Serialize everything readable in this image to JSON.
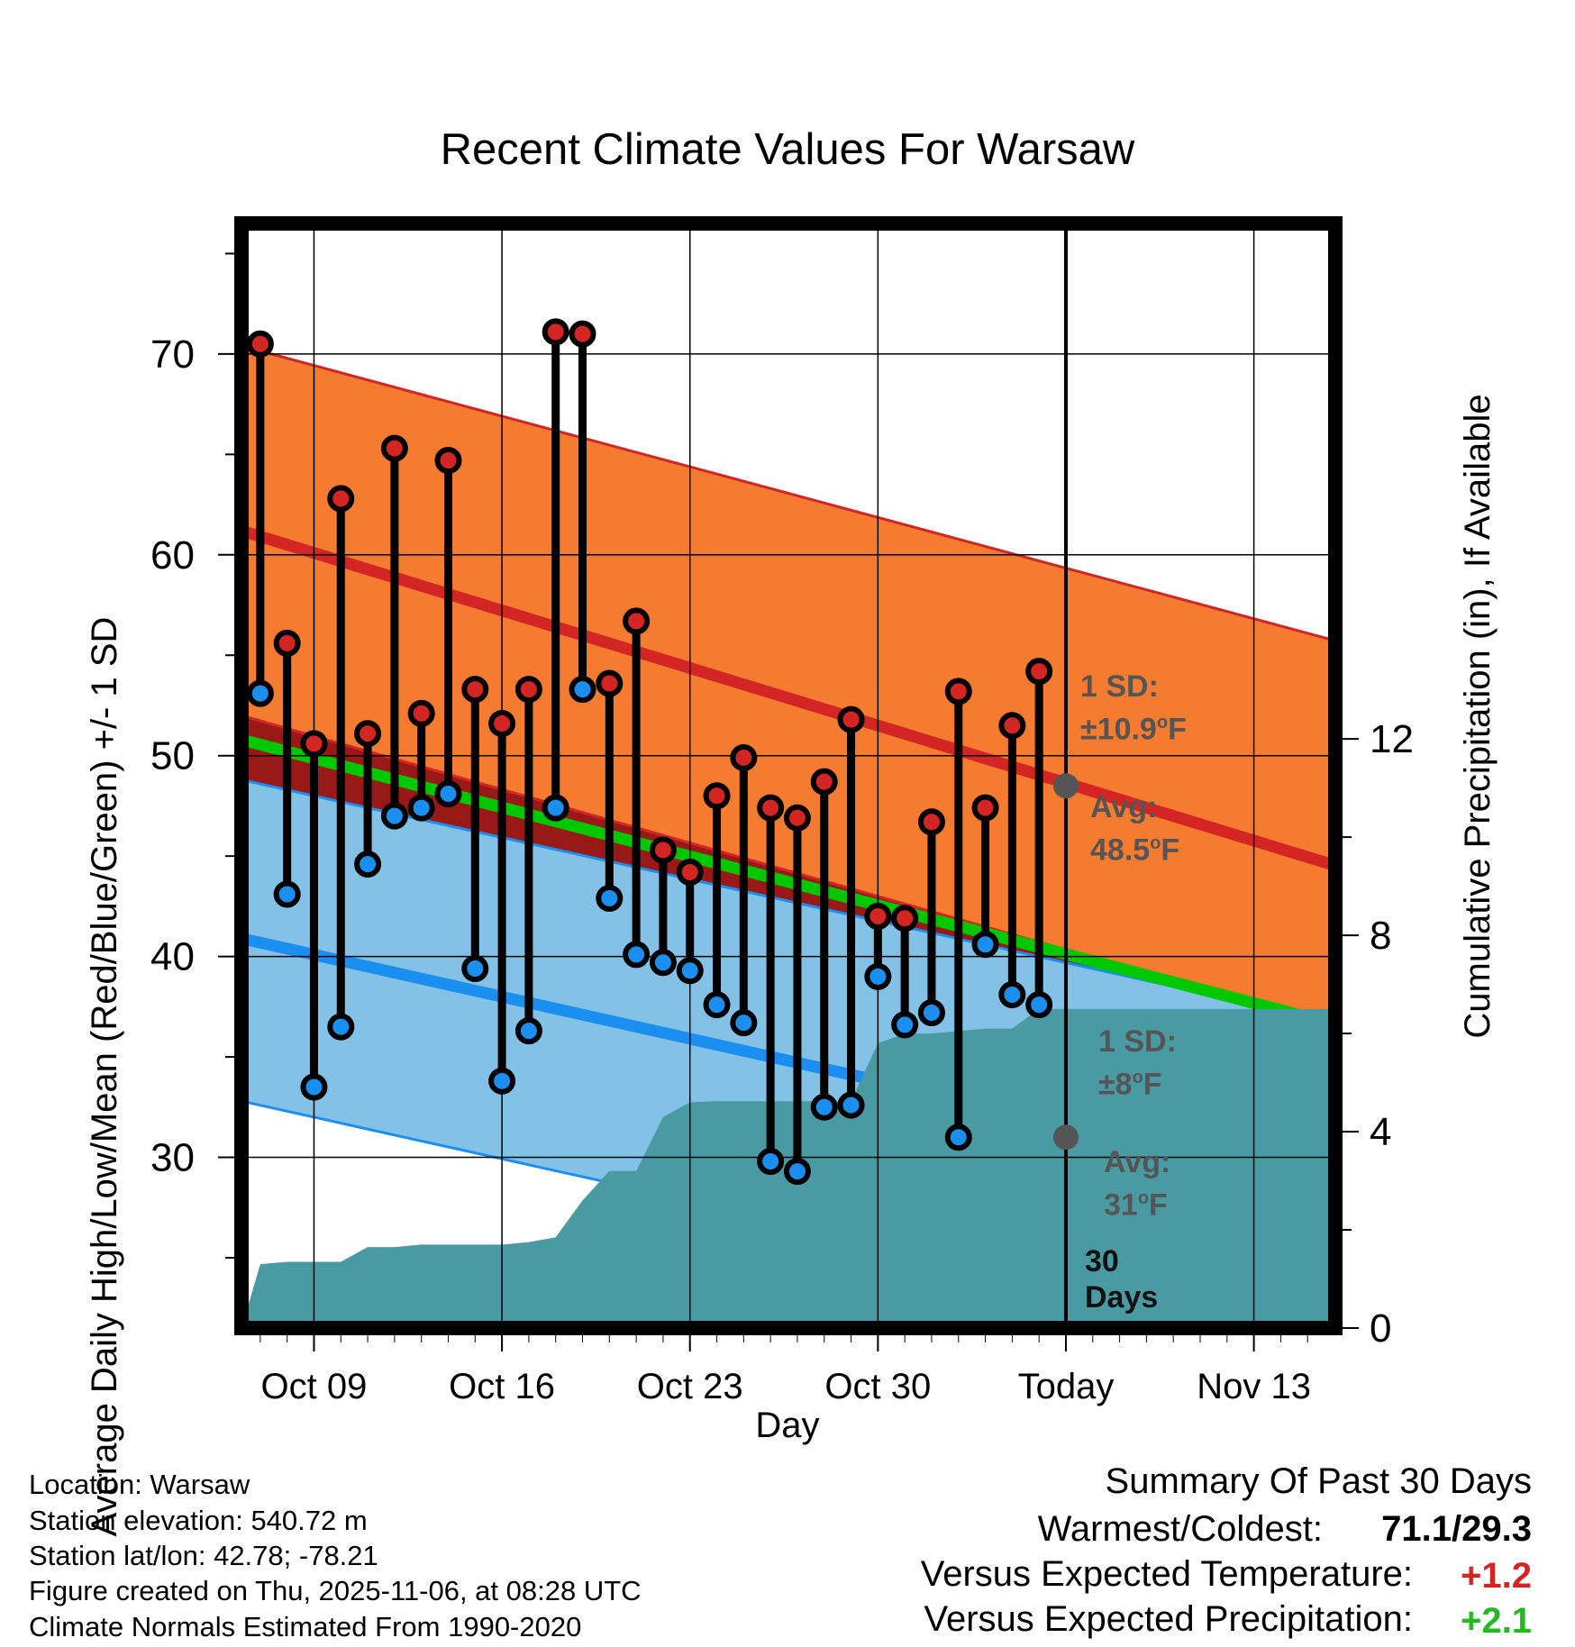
{
  "chart_data": {
    "type": "line",
    "title": "Recent Climate Values For Warsaw",
    "xlabel": "Day",
    "ylabel": "Average Daily High/Low/Mean (Red/Blue/Green) +/- 1 SD",
    "y2label": "Cumulative Precipitation (in), If Available",
    "ylim": [
      21.5,
      76.5
    ],
    "y2lim": [
      0,
      22.5
    ],
    "yticks": [
      30,
      40,
      50,
      60,
      70
    ],
    "y2ticks": [
      0,
      4,
      8,
      12
    ],
    "xlim": [
      6.3,
      47.1
    ],
    "xticks": [
      {
        "x": 9,
        "label": "Oct 09"
      },
      {
        "x": 16,
        "label": "Oct 16"
      },
      {
        "x": 23,
        "label": "Oct 23"
      },
      {
        "x": 30,
        "label": "Oct 30"
      },
      {
        "x": 37,
        "label": "Today"
      },
      {
        "x": 44,
        "label": "Nov 13"
      }
    ],
    "days": [
      7,
      8,
      9,
      10,
      11,
      12,
      13,
      14,
      15,
      16,
      17,
      18,
      19,
      20,
      21,
      22,
      23,
      24,
      25,
      26,
      27,
      28,
      29,
      30,
      31,
      32,
      33,
      34,
      35,
      36
    ],
    "highs": [
      70.5,
      55.6,
      50.6,
      62.8,
      51.1,
      65.3,
      52.1,
      64.7,
      53.3,
      51.6,
      53.3,
      71.1,
      71.0,
      53.6,
      56.7,
      45.3,
      44.2,
      48.0,
      49.9,
      47.4,
      46.9,
      48.7,
      51.8,
      42.0,
      41.9,
      46.7,
      53.2,
      47.4,
      51.5,
      54.2
    ],
    "lows": [
      53.1,
      43.1,
      33.5,
      36.5,
      44.6,
      47.0,
      47.4,
      48.1,
      39.4,
      33.8,
      36.3,
      47.4,
      53.3,
      42.9,
      40.1,
      39.7,
      39.3,
      37.6,
      36.7,
      29.8,
      29.3,
      32.5,
      32.6,
      39.0,
      36.6,
      37.2,
      31.0,
      40.6,
      38.1,
      37.6
    ],
    "normal_high": {
      "x": [
        6.3,
        47.1
      ],
      "y": [
        61.2,
        44.5
      ],
      "sd_upper": [
        70.4,
        55.7
      ],
      "sd_lower": [
        52.0,
        36.5
      ]
    },
    "normal_low": {
      "x": [
        6.3,
        47.1
      ],
      "y": [
        40.9,
        28.7
      ],
      "sd_upper": [
        48.8,
        36.7
      ],
      "sd_lower": [
        32.8,
        20.7
      ]
    },
    "normal_mean": {
      "x": [
        6.3,
        47.1
      ],
      "y": [
        50.8,
        36.6
      ]
    },
    "precip_cumulative": {
      "x": [
        6.3,
        7,
        8,
        9,
        10,
        11,
        12,
        13,
        14,
        15,
        16,
        17,
        18,
        19,
        20,
        21,
        22,
        23,
        24,
        25,
        26,
        27,
        28,
        29,
        30,
        31,
        32,
        33,
        34,
        35,
        36,
        37,
        47.1
      ],
      "y": [
        0.0,
        1.3,
        1.35,
        1.35,
        1.35,
        1.65,
        1.65,
        1.7,
        1.7,
        1.7,
        1.7,
        1.75,
        1.85,
        2.6,
        3.2,
        3.2,
        4.3,
        4.6,
        4.62,
        4.62,
        4.62,
        4.62,
        4.62,
        4.62,
        5.8,
        6.0,
        6.0,
        6.05,
        6.1,
        6.1,
        6.5,
        6.5,
        6.5
      ]
    },
    "today_x": 37,
    "annotations": {
      "high_sd": "1 SD:",
      "high_sd_val": "±10.9",
      "high_avg": "Avg:",
      "high_avg_val": "48.5",
      "low_sd": "1 SD:",
      "low_sd_val": "±8",
      "low_avg": "Avg:",
      "low_avg_val": "31",
      "unit": "F",
      "degree": "o",
      "window_num": "30",
      "window_unit": "Days",
      "today_high_avg": 48.5,
      "today_low_avg": 31
    },
    "colors": {
      "high_band": "#f47b2f",
      "high_line": "#d42525",
      "low_band": "#84c1e6",
      "low_line": "#1b8fef",
      "mean_line": "#00c800",
      "precip": "#4a9aa3",
      "overlap": "#991818",
      "high_dot": "#d42525",
      "low_dot": "#1b8fef"
    }
  },
  "footer": {
    "location": "Location: Warsaw",
    "elevation": "Station elevation: 540.72 m",
    "latlon": "Station lat/lon: 42.78; -78.21",
    "created": "Figure created on Thu, 2025-11-06, at 08:28 UTC",
    "normals": "Climate Normals Estimated From 1990-2020"
  },
  "summary": {
    "heading": "Summary Of Past 30 Days",
    "warm_cold_label": "Warmest/Coldest:",
    "warm_cold_value": "71.1/29.3",
    "temp_label": "Versus Expected Temperature:",
    "temp_value": "+1.2",
    "temp_color": "#d42525",
    "precip_label": "Versus Expected Precipitation:",
    "precip_value": "+2.1",
    "precip_color": "#22bb22"
  }
}
